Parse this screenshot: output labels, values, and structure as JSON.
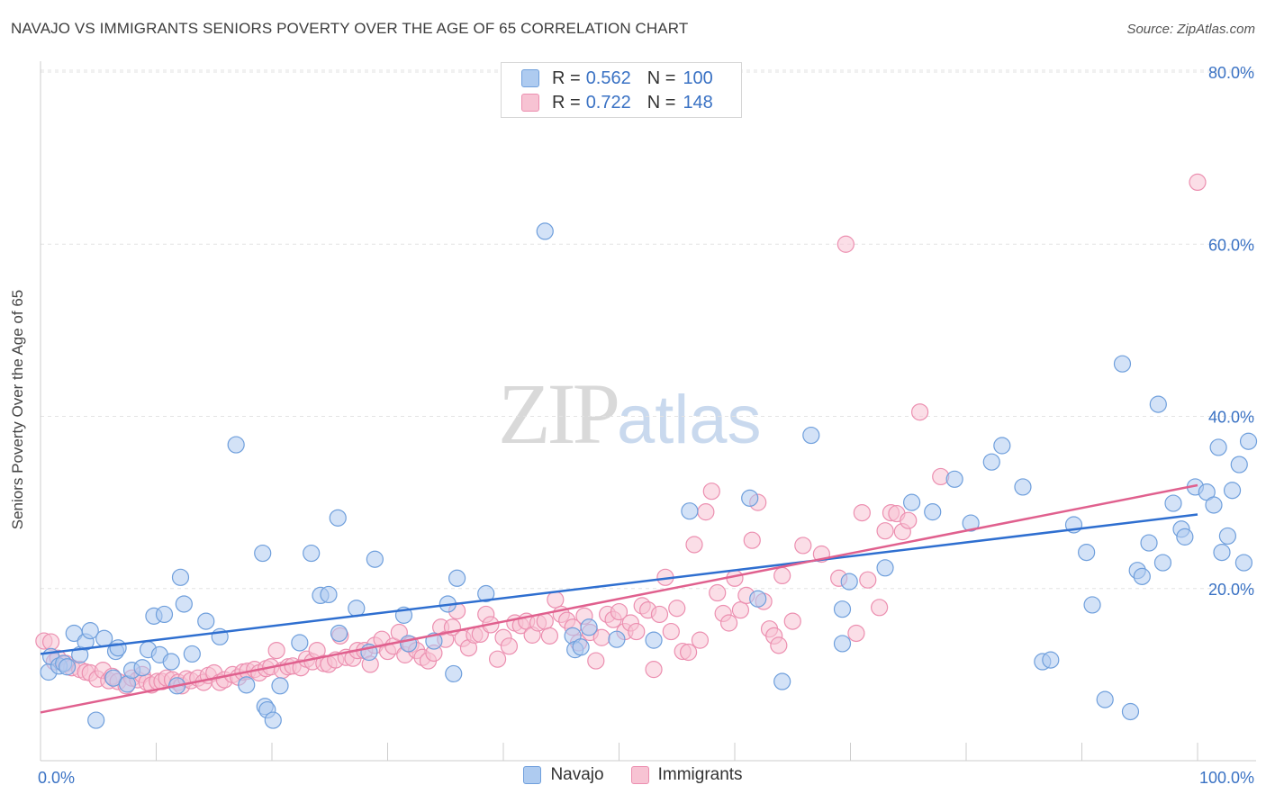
{
  "title": "NAVAJO VS IMMIGRANTS SENIORS POVERTY OVER THE AGE OF 65 CORRELATION CHART",
  "source": "Source: ZipAtlas.com",
  "watermark": {
    "zip": "ZIP",
    "atlas": "atlas"
  },
  "legend": {
    "navajo": {
      "r_label": "R =",
      "r_value": "0.562",
      "n_label": "N =",
      "n_value": "100"
    },
    "immigrants": {
      "r_label": "R =",
      "r_value": "0.722",
      "n_label": "N =",
      "n_value": "148"
    }
  },
  "bottom_legend": {
    "navajo": "Navajo",
    "immigrants": "Immigrants"
  },
  "chart_data": {
    "type": "scatter",
    "ylabel": "Seniors Poverty Over the Age of 65",
    "xlim": [
      0,
      100
    ],
    "ylim": [
      0,
      80
    ],
    "x_tick_labels": [
      "0.0%",
      "100.0%"
    ],
    "y_tick_labels": [
      "20.0%",
      "40.0%",
      "60.0%",
      "80.0%"
    ],
    "y_ticks": [
      20,
      40,
      60,
      80
    ],
    "grid": true,
    "colors": {
      "navajo_fill": "#aecbf0",
      "navajo_stroke": "#6f9fdc",
      "navajo_line": "#2f6fd0",
      "immigrants_fill": "#f7c3d3",
      "immigrants_stroke": "#ec8fb0",
      "immigrants_line": "#e0608e"
    },
    "series": [
      {
        "name": "Navajo",
        "trend": [
          [
            0,
            12.4
          ],
          [
            100,
            28.6
          ]
        ],
        "points": [
          [
            0.7,
            10.3
          ],
          [
            0.9,
            12.1
          ],
          [
            1.6,
            11.0
          ],
          [
            2.0,
            11.3
          ],
          [
            2.3,
            10.9
          ],
          [
            2.9,
            14.8
          ],
          [
            3.4,
            12.3
          ],
          [
            3.9,
            13.8
          ],
          [
            4.3,
            15.1
          ],
          [
            4.8,
            4.7
          ],
          [
            5.5,
            14.2
          ],
          [
            6.3,
            9.6
          ],
          [
            6.5,
            12.7
          ],
          [
            6.7,
            13.1
          ],
          [
            7.5,
            8.9
          ],
          [
            7.9,
            10.5
          ],
          [
            8.8,
            10.8
          ],
          [
            9.3,
            12.9
          ],
          [
            9.8,
            16.8
          ],
          [
            10.3,
            12.3
          ],
          [
            10.7,
            17.0
          ],
          [
            11.3,
            11.5
          ],
          [
            11.8,
            8.7
          ],
          [
            12.1,
            21.3
          ],
          [
            12.4,
            18.2
          ],
          [
            13.1,
            12.4
          ],
          [
            14.3,
            16.2
          ],
          [
            15.5,
            14.4
          ],
          [
            16.9,
            36.7
          ],
          [
            17.8,
            8.8
          ],
          [
            19.2,
            24.1
          ],
          [
            19.4,
            6.3
          ],
          [
            19.6,
            5.9
          ],
          [
            20.1,
            4.7
          ],
          [
            20.7,
            8.7
          ],
          [
            22.4,
            13.7
          ],
          [
            23.4,
            24.1
          ],
          [
            24.2,
            19.2
          ],
          [
            24.9,
            19.3
          ],
          [
            25.8,
            14.8
          ],
          [
            25.7,
            28.2
          ],
          [
            27.3,
            17.7
          ],
          [
            28.4,
            12.6
          ],
          [
            28.9,
            23.4
          ],
          [
            31.4,
            16.9
          ],
          [
            31.8,
            13.6
          ],
          [
            34.0,
            13.9
          ],
          [
            35.2,
            18.2
          ],
          [
            35.7,
            10.1
          ],
          [
            36.0,
            21.2
          ],
          [
            38.5,
            19.4
          ],
          [
            43.6,
            61.5
          ],
          [
            46.0,
            14.5
          ],
          [
            46.2,
            12.9
          ],
          [
            46.7,
            13.2
          ],
          [
            47.4,
            15.5
          ],
          [
            49.8,
            14.1
          ],
          [
            53.0,
            14.0
          ],
          [
            56.1,
            29.0
          ],
          [
            61.3,
            30.5
          ],
          [
            62.0,
            18.8
          ],
          [
            64.1,
            9.2
          ],
          [
            66.6,
            37.8
          ],
          [
            69.3,
            13.6
          ],
          [
            69.3,
            17.6
          ],
          [
            69.9,
            20.8
          ],
          [
            73.0,
            22.4
          ],
          [
            75.3,
            30.0
          ],
          [
            77.1,
            28.9
          ],
          [
            79.0,
            32.7
          ],
          [
            80.4,
            27.6
          ],
          [
            82.2,
            34.7
          ],
          [
            83.1,
            36.6
          ],
          [
            84.9,
            31.8
          ],
          [
            86.6,
            11.5
          ],
          [
            87.3,
            11.7
          ],
          [
            89.3,
            27.4
          ],
          [
            90.4,
            24.2
          ],
          [
            90.9,
            18.1
          ],
          [
            92.0,
            7.1
          ],
          [
            93.5,
            46.1
          ],
          [
            94.2,
            5.7
          ],
          [
            94.8,
            22.1
          ],
          [
            95.2,
            21.4
          ],
          [
            95.8,
            25.3
          ],
          [
            96.6,
            41.4
          ],
          [
            97.0,
            23.0
          ],
          [
            97.9,
            29.9
          ],
          [
            98.6,
            26.9
          ],
          [
            98.9,
            26.0
          ],
          [
            99.8,
            31.8
          ],
          [
            100.8,
            31.2
          ],
          [
            101.4,
            29.7
          ],
          [
            101.8,
            36.4
          ],
          [
            102.1,
            24.2
          ],
          [
            102.6,
            26.1
          ],
          [
            103.0,
            31.4
          ],
          [
            103.6,
            34.4
          ],
          [
            104.0,
            23.0
          ],
          [
            104.4,
            37.1
          ]
        ]
      },
      {
        "name": "Immigrants",
        "trend": [
          [
            0,
            5.6
          ],
          [
            100,
            32.0
          ]
        ],
        "points": [
          [
            0.3,
            13.9
          ],
          [
            0.9,
            13.8
          ],
          [
            1.2,
            11.5
          ],
          [
            1.5,
            11.9
          ],
          [
            2.2,
            11.3
          ],
          [
            2.7,
            10.8
          ],
          [
            3.4,
            10.6
          ],
          [
            3.9,
            10.3
          ],
          [
            4.3,
            10.2
          ],
          [
            4.9,
            9.5
          ],
          [
            5.4,
            10.5
          ],
          [
            5.9,
            9.3
          ],
          [
            6.2,
            9.8
          ],
          [
            6.7,
            9.2
          ],
          [
            7.4,
            8.7
          ],
          [
            7.9,
            9.6
          ],
          [
            8.4,
            9.4
          ],
          [
            8.8,
            10.0
          ],
          [
            9.2,
            9.1
          ],
          [
            9.6,
            8.8
          ],
          [
            10.1,
            9.2
          ],
          [
            10.5,
            9.2
          ],
          [
            10.9,
            9.6
          ],
          [
            11.4,
            9.4
          ],
          [
            11.9,
            9.1
          ],
          [
            12.2,
            8.7
          ],
          [
            12.6,
            9.5
          ],
          [
            13.0,
            9.3
          ],
          [
            13.6,
            9.6
          ],
          [
            14.1,
            9.1
          ],
          [
            14.5,
            9.9
          ],
          [
            15.0,
            10.2
          ],
          [
            15.5,
            9.1
          ],
          [
            15.9,
            9.4
          ],
          [
            16.6,
            10.0
          ],
          [
            17.1,
            9.7
          ],
          [
            17.5,
            10.3
          ],
          [
            17.9,
            10.4
          ],
          [
            18.5,
            10.6
          ],
          [
            18.9,
            10.2
          ],
          [
            19.5,
            10.7
          ],
          [
            19.9,
            10.9
          ],
          [
            20.4,
            12.8
          ],
          [
            20.9,
            10.5
          ],
          [
            21.4,
            10.9
          ],
          [
            21.8,
            11.0
          ],
          [
            22.5,
            10.8
          ],
          [
            23.0,
            11.8
          ],
          [
            23.5,
            11.5
          ],
          [
            23.9,
            12.8
          ],
          [
            24.5,
            11.3
          ],
          [
            24.9,
            11.2
          ],
          [
            25.5,
            11.7
          ],
          [
            25.9,
            14.5
          ],
          [
            26.4,
            12.0
          ],
          [
            27.0,
            11.9
          ],
          [
            27.4,
            12.8
          ],
          [
            28.0,
            12.8
          ],
          [
            28.5,
            11.2
          ],
          [
            28.9,
            13.4
          ],
          [
            29.5,
            14.1
          ],
          [
            30.0,
            12.7
          ],
          [
            30.5,
            13.3
          ],
          [
            31.0,
            14.9
          ],
          [
            31.5,
            12.3
          ],
          [
            32.0,
            13.5
          ],
          [
            32.5,
            12.8
          ],
          [
            33.0,
            12.0
          ],
          [
            33.5,
            11.6
          ],
          [
            34.0,
            12.5
          ],
          [
            34.6,
            15.5
          ],
          [
            35.0,
            14.1
          ],
          [
            35.6,
            15.5
          ],
          [
            36.0,
            17.4
          ],
          [
            36.5,
            14.2
          ],
          [
            37.0,
            13.1
          ],
          [
            37.5,
            14.6
          ],
          [
            38.0,
            14.7
          ],
          [
            38.5,
            17.0
          ],
          [
            38.9,
            15.8
          ],
          [
            39.5,
            11.8
          ],
          [
            40.0,
            14.3
          ],
          [
            40.5,
            13.3
          ],
          [
            41.0,
            16.0
          ],
          [
            41.5,
            15.7
          ],
          [
            42.0,
            16.2
          ],
          [
            42.5,
            14.6
          ],
          [
            43.0,
            16.0
          ],
          [
            43.6,
            16.2
          ],
          [
            44.0,
            14.5
          ],
          [
            44.5,
            18.7
          ],
          [
            45.0,
            17.0
          ],
          [
            45.5,
            16.3
          ],
          [
            46.0,
            15.5
          ],
          [
            46.5,
            13.7
          ],
          [
            47.0,
            16.8
          ],
          [
            47.5,
            14.9
          ],
          [
            48.0,
            11.6
          ],
          [
            48.5,
            14.3
          ],
          [
            49.0,
            17.0
          ],
          [
            49.5,
            16.4
          ],
          [
            50.0,
            17.3
          ],
          [
            50.5,
            15.0
          ],
          [
            51.0,
            16.0
          ],
          [
            51.5,
            15.0
          ],
          [
            52.0,
            18.0
          ],
          [
            52.5,
            17.5
          ],
          [
            53.0,
            10.6
          ],
          [
            53.5,
            17.0
          ],
          [
            54.0,
            21.3
          ],
          [
            54.5,
            15.0
          ],
          [
            55.0,
            17.7
          ],
          [
            55.5,
            12.7
          ],
          [
            56.0,
            12.6
          ],
          [
            56.5,
            25.1
          ],
          [
            57.0,
            14.0
          ],
          [
            57.5,
            28.9
          ],
          [
            58.0,
            31.3
          ],
          [
            58.5,
            19.5
          ],
          [
            59.0,
            17.1
          ],
          [
            59.5,
            16.0
          ],
          [
            60.0,
            21.2
          ],
          [
            60.5,
            17.5
          ],
          [
            61.0,
            19.2
          ],
          [
            61.5,
            25.6
          ],
          [
            62.0,
            30.0
          ],
          [
            62.5,
            18.5
          ],
          [
            63.0,
            15.3
          ],
          [
            63.4,
            14.5
          ],
          [
            63.8,
            13.4
          ],
          [
            64.1,
            21.5
          ],
          [
            65.0,
            16.2
          ],
          [
            65.9,
            25.0
          ],
          [
            67.5,
            24.0
          ],
          [
            69.0,
            21.2
          ],
          [
            69.6,
            60.0
          ],
          [
            70.5,
            14.8
          ],
          [
            71.0,
            28.8
          ],
          [
            71.5,
            21.0
          ],
          [
            72.5,
            17.8
          ],
          [
            73.0,
            26.7
          ],
          [
            73.5,
            28.8
          ],
          [
            74.0,
            28.7
          ],
          [
            74.5,
            26.6
          ],
          [
            75.0,
            27.9
          ],
          [
            76.0,
            40.5
          ],
          [
            77.8,
            33.0
          ],
          [
            100.0,
            67.2
          ]
        ]
      }
    ]
  }
}
